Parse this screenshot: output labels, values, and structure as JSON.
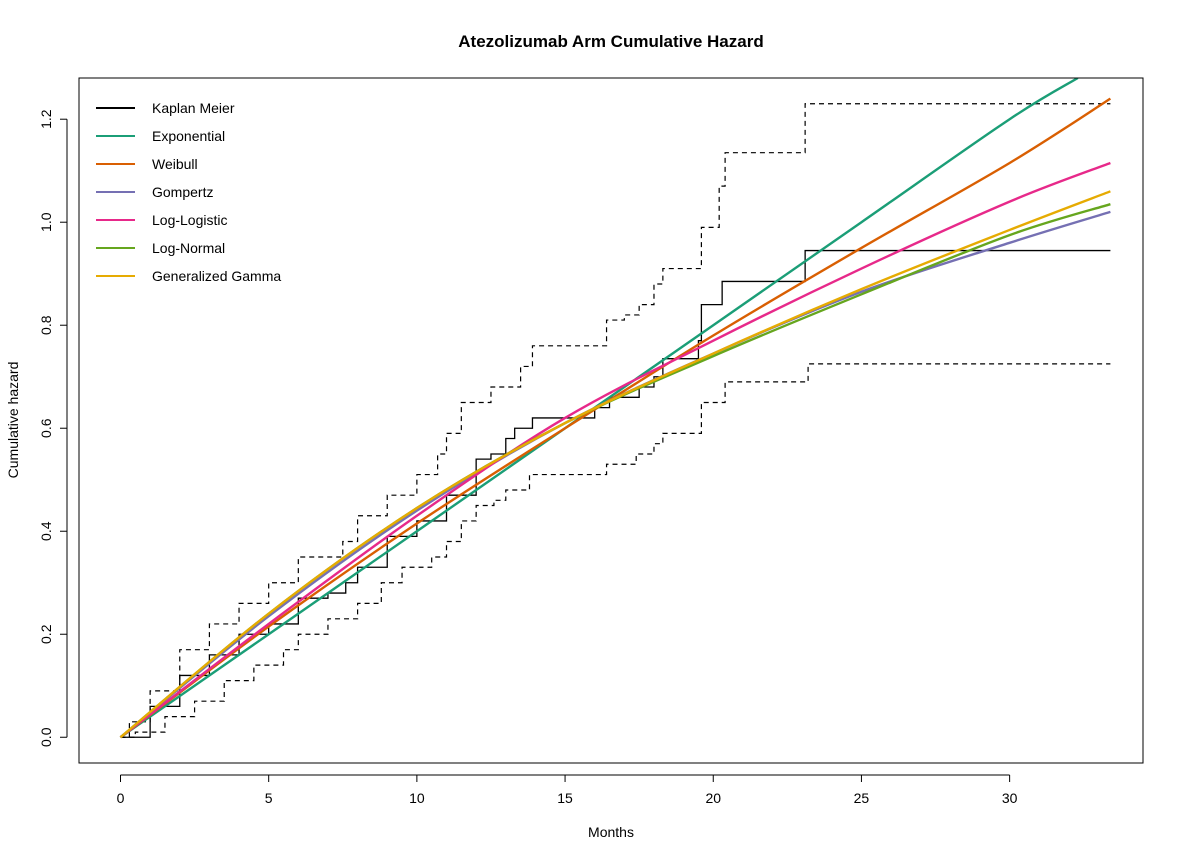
{
  "chart_data": {
    "type": "line",
    "title": "Atezolizumab Arm Cumulative Hazard",
    "xlabel": "Months",
    "ylabel": "Cumulative hazard",
    "xlim": [
      -1.4,
      34.5
    ],
    "ylim": [
      -0.05,
      1.28
    ],
    "x_ticks": [
      0,
      5,
      10,
      15,
      20,
      25,
      30
    ],
    "y_ticks": [
      0.0,
      0.2,
      0.4,
      0.6,
      0.8,
      1.0,
      1.2
    ],
    "x_tick_labels": [
      "0",
      "5",
      "10",
      "15",
      "20",
      "25",
      "30"
    ],
    "y_tick_labels": [
      "0.0",
      "0.2",
      "0.4",
      "0.6",
      "0.8",
      "1.0",
      "1.2"
    ],
    "legend_position": "top-left",
    "kaplan_meier": {
      "name": "Kaplan Meier",
      "color": "#000000",
      "estimate": [
        [
          0,
          0
        ],
        [
          1,
          0.06
        ],
        [
          2,
          0.12
        ],
        [
          3,
          0.16
        ],
        [
          4,
          0.2
        ],
        [
          5,
          0.22
        ],
        [
          6,
          0.27
        ],
        [
          7,
          0.28
        ],
        [
          7.6,
          0.3
        ],
        [
          8,
          0.33
        ],
        [
          9,
          0.39
        ],
        [
          10,
          0.42
        ],
        [
          11,
          0.47
        ],
        [
          12,
          0.54
        ],
        [
          12.5,
          0.55
        ],
        [
          13,
          0.58
        ],
        [
          13.3,
          0.6
        ],
        [
          13.9,
          0.62
        ],
        [
          15.2,
          0.62
        ],
        [
          16,
          0.64
        ],
        [
          16.5,
          0.66
        ],
        [
          17.5,
          0.68
        ],
        [
          18,
          0.7
        ],
        [
          18.3,
          0.735
        ],
        [
          19.5,
          0.77
        ],
        [
          19.6,
          0.84
        ],
        [
          20.3,
          0.885
        ],
        [
          23.1,
          0.945
        ],
        [
          33.4,
          0.945
        ]
      ],
      "upper": [
        [
          0,
          0
        ],
        [
          0.3,
          0.03
        ],
        [
          1,
          0.09
        ],
        [
          2,
          0.17
        ],
        [
          3,
          0.22
        ],
        [
          4,
          0.26
        ],
        [
          5,
          0.3
        ],
        [
          6,
          0.35
        ],
        [
          7.5,
          0.38
        ],
        [
          8,
          0.43
        ],
        [
          9,
          0.47
        ],
        [
          10,
          0.51
        ],
        [
          10.7,
          0.55
        ],
        [
          11,
          0.59
        ],
        [
          11.5,
          0.65
        ],
        [
          12.5,
          0.68
        ],
        [
          13.5,
          0.72
        ],
        [
          13.9,
          0.76
        ],
        [
          16.1,
          0.76
        ],
        [
          16.4,
          0.81
        ],
        [
          17,
          0.82
        ],
        [
          17.5,
          0.84
        ],
        [
          18,
          0.88
        ],
        [
          18.3,
          0.91
        ],
        [
          19.4,
          0.91
        ],
        [
          19.6,
          0.99
        ],
        [
          20.2,
          1.07
        ],
        [
          20.4,
          1.135
        ],
        [
          23.1,
          1.135
        ],
        [
          23.1,
          1.23
        ],
        [
          33.4,
          1.23
        ]
      ],
      "lower": [
        [
          0,
          0
        ],
        [
          0.5,
          0.01
        ],
        [
          1.5,
          0.04
        ],
        [
          2.5,
          0.07
        ],
        [
          3.5,
          0.11
        ],
        [
          4.5,
          0.14
        ],
        [
          5.5,
          0.17
        ],
        [
          6,
          0.2
        ],
        [
          7,
          0.23
        ],
        [
          8,
          0.26
        ],
        [
          8.8,
          0.3
        ],
        [
          9.5,
          0.33
        ],
        [
          10.5,
          0.35
        ],
        [
          11,
          0.38
        ],
        [
          11.5,
          0.42
        ],
        [
          12,
          0.45
        ],
        [
          12.6,
          0.46
        ],
        [
          13,
          0.48
        ],
        [
          13.8,
          0.51
        ],
        [
          16.1,
          0.51
        ],
        [
          16.4,
          0.53
        ],
        [
          17.4,
          0.55
        ],
        [
          18,
          0.57
        ],
        [
          18.3,
          0.59
        ],
        [
          19.5,
          0.59
        ],
        [
          19.6,
          0.65
        ],
        [
          20.4,
          0.69
        ],
        [
          23.1,
          0.69
        ],
        [
          23.2,
          0.725
        ],
        [
          33.4,
          0.725
        ]
      ]
    },
    "series": [
      {
        "name": "Exponential",
        "color": "#1B9E77",
        "x": [
          0,
          5,
          10,
          15,
          20,
          25,
          30,
          32.3
        ],
        "y": [
          0,
          0.2,
          0.4,
          0.6,
          0.8,
          1.0,
          1.2,
          1.28
        ]
      },
      {
        "name": "Weibull",
        "color": "#D95F02",
        "x": [
          0,
          5,
          10,
          15,
          20,
          25,
          30,
          33.4
        ],
        "y": [
          0,
          0.215,
          0.415,
          0.6,
          0.78,
          0.95,
          1.115,
          1.24
        ]
      },
      {
        "name": "Gompertz",
        "color": "#7570B3",
        "x": [
          0,
          5,
          10,
          15,
          20,
          25,
          30,
          33.4
        ],
        "y": [
          0,
          0.235,
          0.44,
          0.61,
          0.745,
          0.865,
          0.96,
          1.02
        ]
      },
      {
        "name": "Log-Logistic",
        "color": "#E7298A",
        "x": [
          0,
          5,
          10,
          15,
          20,
          25,
          30,
          33.4
        ],
        "y": [
          0,
          0.22,
          0.43,
          0.62,
          0.77,
          0.91,
          1.04,
          1.115
        ]
      },
      {
        "name": "Log-Normal",
        "color": "#66A61E",
        "x": [
          0,
          5,
          10,
          15,
          20,
          25,
          30,
          33.4
        ],
        "y": [
          0,
          0.24,
          0.445,
          0.61,
          0.74,
          0.86,
          0.975,
          1.035
        ]
      },
      {
        "name": "Generalized Gamma",
        "color": "#E6AB02",
        "x": [
          0,
          5,
          10,
          15,
          20,
          25,
          30,
          33.4
        ],
        "y": [
          0,
          0.24,
          0.445,
          0.61,
          0.745,
          0.87,
          0.985,
          1.06
        ]
      }
    ]
  }
}
